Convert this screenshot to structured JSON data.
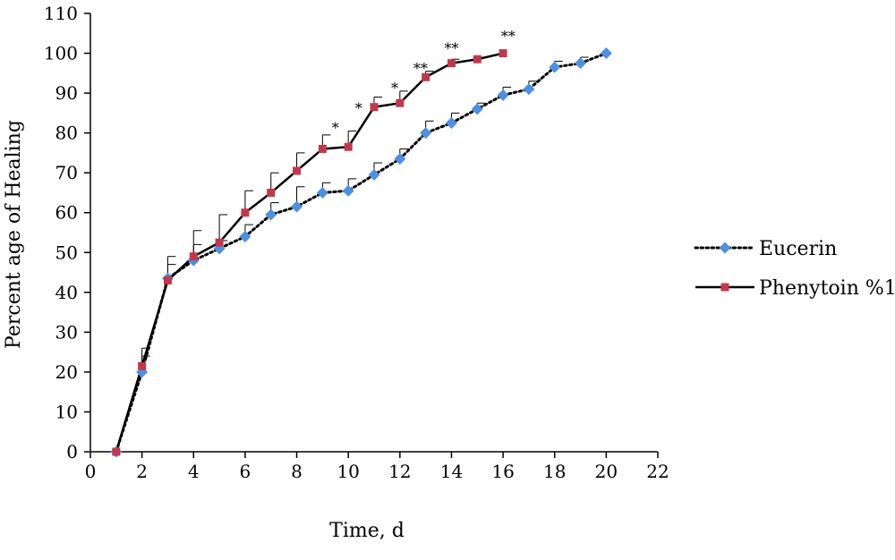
{
  "chart_data": {
    "type": "line",
    "xlabel": "Time, d",
    "ylabel": "Percent age of Healing",
    "xlim": [
      0,
      22
    ],
    "ylim": [
      0,
      110
    ],
    "x_ticks": [
      0,
      2,
      4,
      6,
      8,
      10,
      12,
      14,
      16,
      18,
      20,
      22
    ],
    "y_ticks": [
      0,
      10,
      20,
      30,
      40,
      50,
      60,
      70,
      80,
      90,
      100,
      110
    ],
    "grid": false,
    "legend_position": "right",
    "series": [
      {
        "name": "Eucerin",
        "line_style": "dotted",
        "marker": "diamond",
        "line_color": "#000000",
        "marker_color": "#4F8FE0",
        "x": [
          1,
          2,
          3,
          4,
          5,
          6,
          7,
          8,
          9,
          10,
          11,
          12,
          13,
          14,
          15,
          16,
          17,
          18,
          19,
          20
        ],
        "y": [
          0,
          20,
          43.5,
          48,
          51,
          54,
          59.5,
          61.5,
          65,
          65.5,
          69.5,
          73.5,
          80,
          82.5,
          86,
          89.5,
          91,
          96.5,
          97.5,
          100
        ],
        "error": [
          0,
          4,
          3.5,
          4,
          2,
          3,
          3,
          5,
          2.5,
          3,
          3,
          2.5,
          3,
          2.5,
          1.5,
          2,
          2,
          1.5,
          1.5,
          0
        ]
      },
      {
        "name": "Phenytoin %1",
        "line_style": "solid",
        "marker": "square",
        "line_color": "#000000",
        "marker_color": "#C0394B",
        "x": [
          1,
          2,
          3,
          4,
          5,
          6,
          7,
          8,
          9,
          10,
          11,
          12,
          13,
          14,
          15,
          16
        ],
        "y": [
          0,
          21.5,
          43,
          49,
          52.5,
          60,
          65,
          70.5,
          76,
          76.5,
          86.5,
          87.5,
          94,
          97.5,
          98.5,
          100
        ],
        "error": [
          0,
          4.5,
          6,
          6.5,
          7,
          5.5,
          5,
          4.5,
          3.5,
          4,
          2.5,
          3,
          1.5,
          1,
          0.5,
          0
        ]
      }
    ],
    "annotations": [
      {
        "text": "*",
        "x": 9.5,
        "y": 80
      },
      {
        "text": "*",
        "x": 10.4,
        "y": 85
      },
      {
        "text": "*",
        "x": 11.8,
        "y": 90
      },
      {
        "text": "**",
        "x": 12.8,
        "y": 95
      },
      {
        "text": "**",
        "x": 14,
        "y": 100
      },
      {
        "text": "**",
        "x": 16.2,
        "y": 103
      }
    ]
  }
}
